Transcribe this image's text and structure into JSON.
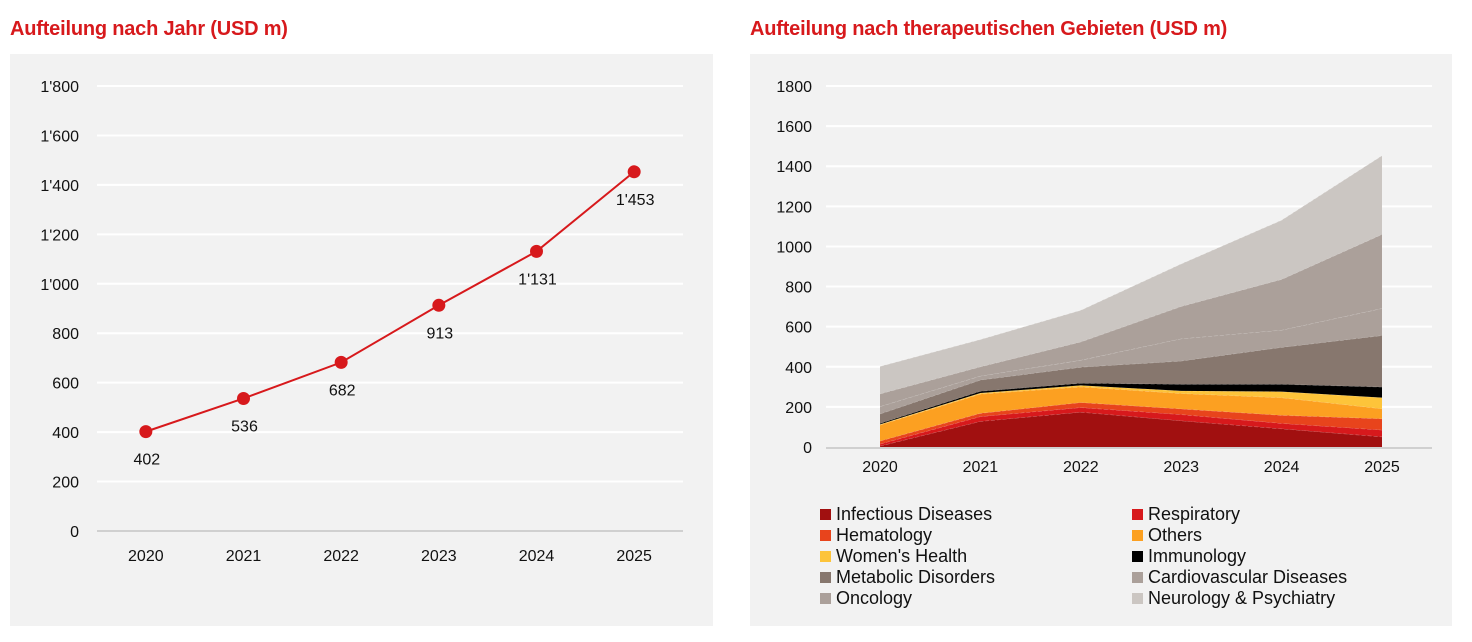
{
  "left_title": "Aufteilung nach Jahr (USD m)",
  "right_title": "Aufteilung nach therapeutischen Gebieten (USD m)",
  "colors": {
    "title": "#d7191c",
    "line": "#d7191c",
    "panel_bg": "#f2f2f2",
    "grid": "#ffffff",
    "baseline": "#d0d0d0"
  },
  "chart_data": [
    {
      "type": "line",
      "title": "Aufteilung nach Jahr (USD m)",
      "xlabel": "",
      "ylabel": "",
      "categories": [
        "2020",
        "2021",
        "2022",
        "2023",
        "2024",
        "2025"
      ],
      "values": [
        402,
        536,
        682,
        913,
        1131,
        1453
      ],
      "data_labels": [
        "402",
        "536",
        "682",
        "913",
        "1'131",
        "1'453"
      ],
      "ylim": [
        0,
        1800
      ],
      "yticks": [
        0,
        200,
        400,
        600,
        800,
        1000,
        1200,
        1400,
        1600,
        1800
      ],
      "ytick_labels": [
        "0",
        "200",
        "400",
        "600",
        "800",
        "1'000",
        "1'200",
        "1'400",
        "1'600",
        "1'800"
      ],
      "grid": true,
      "legend": "none",
      "marker": "circle",
      "color": "#d7191c"
    },
    {
      "type": "area",
      "stacked": true,
      "title": "Aufteilung nach therapeutischen Gebieten (USD m)",
      "xlabel": "",
      "ylabel": "",
      "categories": [
        "2020",
        "2021",
        "2022",
        "2023",
        "2024",
        "2025"
      ],
      "ylim": [
        0,
        1800
      ],
      "yticks": [
        0,
        200,
        400,
        600,
        800,
        1000,
        1200,
        1400,
        1600,
        1800
      ],
      "ytick_labels": [
        "0",
        "200",
        "400",
        "600",
        "800",
        "1000",
        "1200",
        "1400",
        "1600",
        "1800"
      ],
      "grid": true,
      "legend": "bottom",
      "series": [
        {
          "name": "Infectious Diseases",
          "color": "#a11010",
          "values": [
            5,
            128,
            174,
            131,
            91,
            51
          ]
        },
        {
          "name": "Respiratory",
          "color": "#d7191c",
          "values": [
            10,
            24,
            23,
            31,
            27,
            34
          ]
        },
        {
          "name": "Hematology",
          "color": "#e8441c",
          "values": [
            15,
            16,
            25,
            28,
            40,
            56
          ]
        },
        {
          "name": "Others",
          "color": "#fca021",
          "values": [
            80,
            96,
            78,
            77,
            88,
            50
          ]
        },
        {
          "name": "Women's Health",
          "color": "#fdc43a",
          "values": [
            3,
            5,
            7,
            13,
            30,
            55
          ]
        },
        {
          "name": "Immunology",
          "color": "#000000",
          "values": [
            5,
            9,
            11,
            33,
            37,
            53
          ]
        },
        {
          "name": "Metabolic  Disorders",
          "color": "#87776e",
          "values": [
            47,
            56,
            80,
            116,
            184,
            257
          ]
        },
        {
          "name": "Cardiovascular Diseases",
          "color": "#aba09a",
          "values": [
            37,
            20,
            35,
            111,
            86,
            135
          ]
        },
        {
          "name": "Oncology",
          "color": "#aba09a",
          "values": [
            63,
            46,
            91,
            161,
            253,
            369
          ]
        },
        {
          "name": "Neurology & Psychiatry",
          "color": "#cbc6c2",
          "values": [
            137,
            136,
            158,
            212,
            295,
            393
          ]
        }
      ],
      "legend_order": [
        "Infectious Diseases",
        "Respiratory",
        "Hematology",
        "Others",
        "Women's Health",
        "Immunology",
        "Metabolic  Disorders",
        "Cardiovascular Diseases",
        "Oncology",
        "Neurology & Psychiatry"
      ]
    }
  ]
}
